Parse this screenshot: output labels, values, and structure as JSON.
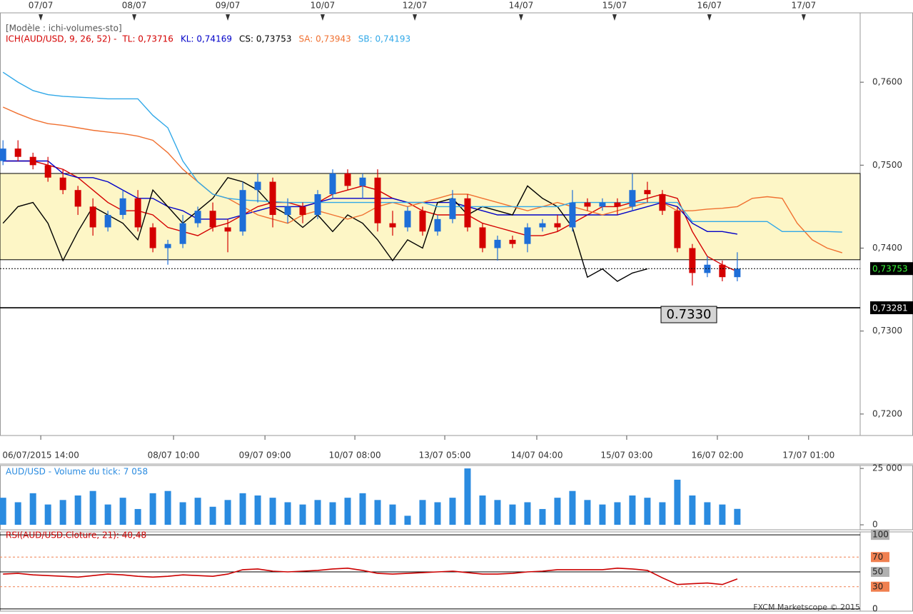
{
  "chart_data": [
    {
      "type": "candlestick",
      "title": "[Modèle : ichi-volumes-sto]",
      "indicator": "ICH(AUD/USD, 9, 26, 52) -",
      "xlim": [
        -0.2,
        57.2
      ],
      "ylim": [
        0.71741,
        0.76836
      ],
      "yticks": [
        {
          "value": 0.76,
          "label": "0,7600"
        },
        {
          "value": 0.75,
          "label": "0,7500"
        },
        {
          "value": 0.74,
          "label": "0,7400"
        },
        {
          "value": 0.73,
          "label": "0,7300"
        },
        {
          "value": 0.72,
          "label": "0,7200"
        }
      ],
      "xticks": [
        {
          "value": 2.52,
          "label": "06/07/2015 14:00"
        },
        {
          "value": 11.38,
          "label": "08/07 10:00"
        },
        {
          "value": 17.48,
          "label": "09/07 09:00"
        },
        {
          "value": 23.48,
          "label": "10/07 08:00"
        },
        {
          "value": 29.48,
          "label": "13/07 05:00"
        },
        {
          "value": 35.62,
          "label": "14/07 04:00"
        },
        {
          "value": 41.62,
          "label": "15/07 03:00"
        },
        {
          "value": 47.67,
          "label": "16/07 02:00"
        },
        {
          "value": 53.76,
          "label": "17/07 01:00"
        }
      ],
      "top_xticks": [
        {
          "value": 2.52,
          "label": "07/07"
        },
        {
          "value": 8.76,
          "label": "08/07"
        },
        {
          "value": 15.0,
          "label": "09/07"
        },
        {
          "value": 21.33,
          "label": "10/07"
        },
        {
          "value": 27.48,
          "label": "12/07"
        },
        {
          "value": 34.57,
          "label": "14/07"
        },
        {
          "value": 40.81,
          "label": "15/07"
        },
        {
          "value": 47.14,
          "label": "16/07"
        },
        {
          "value": 53.43,
          "label": "17/07"
        }
      ],
      "zone": [
        0.7386,
        0.749
      ],
      "current_price": {
        "value": 0.73753,
        "label": "0,73753"
      },
      "level": {
        "value": 0.73281,
        "label": "0,73281"
      },
      "level_annotation": "0.7330",
      "up_color": "#1e6ed8",
      "down_color": "#d40000",
      "open": [
        0.7505,
        0.752,
        0.751,
        0.75,
        0.7485,
        0.747,
        0.745,
        0.7425,
        0.744,
        0.746,
        0.7425,
        0.74,
        0.7405,
        0.743,
        0.7445,
        0.7425,
        0.742,
        0.747,
        0.748,
        0.744,
        0.745,
        0.744,
        0.7465,
        0.749,
        0.7475,
        0.7485,
        0.743,
        0.7425,
        0.7445,
        0.742,
        0.7435,
        0.746,
        0.7425,
        0.74,
        0.741,
        0.7405,
        0.7425,
        0.743,
        0.7425,
        0.7455,
        0.745,
        0.7455,
        0.745,
        0.747,
        0.7465,
        0.7445,
        0.74,
        0.737,
        0.738,
        0.7365
      ],
      "high": [
        0.753,
        0.753,
        0.7515,
        0.751,
        0.7495,
        0.7475,
        0.746,
        0.7445,
        0.747,
        0.747,
        0.743,
        0.741,
        0.744,
        0.745,
        0.7455,
        0.7435,
        0.748,
        0.749,
        0.7485,
        0.746,
        0.7455,
        0.747,
        0.7495,
        0.7495,
        0.749,
        0.7495,
        0.7445,
        0.745,
        0.745,
        0.744,
        0.747,
        0.7465,
        0.743,
        0.7415,
        0.7415,
        0.743,
        0.7435,
        0.744,
        0.747,
        0.746,
        0.746,
        0.746,
        0.749,
        0.748,
        0.747,
        0.745,
        0.7405,
        0.739,
        0.7385,
        0.7395
      ],
      "low": [
        0.75,
        0.7505,
        0.7495,
        0.748,
        0.7465,
        0.744,
        0.7415,
        0.742,
        0.7435,
        0.742,
        0.7395,
        0.738,
        0.74,
        0.7425,
        0.742,
        0.7395,
        0.7415,
        0.7455,
        0.7425,
        0.743,
        0.743,
        0.7435,
        0.746,
        0.747,
        0.746,
        0.742,
        0.7415,
        0.742,
        0.7415,
        0.7415,
        0.743,
        0.742,
        0.7395,
        0.7385,
        0.74,
        0.7395,
        0.742,
        0.742,
        0.742,
        0.7445,
        0.7445,
        0.744,
        0.7445,
        0.7455,
        0.744,
        0.7395,
        0.7355,
        0.7365,
        0.736,
        0.736
      ],
      "close": [
        0.752,
        0.751,
        0.75,
        0.7485,
        0.747,
        0.745,
        0.7425,
        0.744,
        0.746,
        0.7425,
        0.74,
        0.7405,
        0.743,
        0.7445,
        0.7425,
        0.742,
        0.747,
        0.748,
        0.744,
        0.745,
        0.744,
        0.7465,
        0.749,
        0.7475,
        0.7485,
        0.743,
        0.7425,
        0.7445,
        0.742,
        0.7435,
        0.746,
        0.7425,
        0.74,
        0.741,
        0.7405,
        0.7425,
        0.743,
        0.7425,
        0.7455,
        0.745,
        0.7455,
        0.745,
        0.747,
        0.7465,
        0.7445,
        0.74,
        0.737,
        0.738,
        0.7365,
        0.73753
      ],
      "series": [
        {
          "name": "TL: 0,73716",
          "color": "#d40000",
          "values": [
            0.7505,
            0.7505,
            0.7505,
            0.75,
            0.7495,
            0.7485,
            0.747,
            0.7455,
            0.7445,
            0.7445,
            0.744,
            0.7425,
            0.742,
            0.7415,
            0.7425,
            0.743,
            0.744,
            0.745,
            0.7455,
            0.7455,
            0.745,
            0.7455,
            0.7465,
            0.747,
            0.7475,
            0.747,
            0.746,
            0.7455,
            0.7445,
            0.744,
            0.744,
            0.744,
            0.743,
            0.7425,
            0.742,
            0.7415,
            0.7415,
            0.742,
            0.743,
            0.744,
            0.745,
            0.745,
            0.7455,
            0.746,
            0.7465,
            0.746,
            0.742,
            0.739,
            0.738,
            0.73716
          ]
        },
        {
          "name": "KL: 0,74169",
          "color": "#0000c8",
          "values": [
            0.7505,
            0.7505,
            0.7505,
            0.7505,
            0.749,
            0.7485,
            0.7485,
            0.748,
            0.747,
            0.746,
            0.746,
            0.745,
            0.7445,
            0.7435,
            0.7435,
            0.7435,
            0.744,
            0.7445,
            0.745,
            0.745,
            0.745,
            0.7455,
            0.746,
            0.746,
            0.746,
            0.746,
            0.746,
            0.7455,
            0.7455,
            0.7455,
            0.7455,
            0.745,
            0.7445,
            0.744,
            0.744,
            0.744,
            0.744,
            0.744,
            0.744,
            0.744,
            0.744,
            0.744,
            0.7445,
            0.745,
            0.7455,
            0.745,
            0.743,
            0.742,
            0.742,
            0.74169
          ]
        },
        {
          "name": "CS: 0,73753",
          "color": "#000000",
          "values": [
            0.743,
            0.745,
            0.7455,
            0.743,
            0.7385,
            0.742,
            0.745,
            0.744,
            0.743,
            0.741,
            0.747,
            0.745,
            0.743,
            0.7445,
            0.746,
            0.7485,
            0.748,
            0.747,
            0.745,
            0.744,
            0.7425,
            0.744,
            0.742,
            0.744,
            0.743,
            0.741,
            0.7385,
            0.741,
            0.74,
            0.7455,
            0.746,
            0.744,
            0.745,
            0.7445,
            0.744,
            0.7475,
            0.746,
            0.745,
            0.7425,
            0.7365,
            0.7375,
            0.736,
            0.737,
            0.7375
          ]
        },
        {
          "name": "SA: 0,73943",
          "color": "#f07030",
          "values": [
            0.757,
            0.7562,
            0.7555,
            0.755,
            0.7548,
            0.7545,
            0.7542,
            0.754,
            0.7538,
            0.7535,
            0.753,
            0.7515,
            0.7495,
            0.748,
            0.7465,
            0.746,
            0.745,
            0.744,
            0.7435,
            0.743,
            0.744,
            0.7445,
            0.744,
            0.7435,
            0.744,
            0.745,
            0.7455,
            0.745,
            0.7455,
            0.746,
            0.7465,
            0.7465,
            0.746,
            0.7455,
            0.745,
            0.7445,
            0.745,
            0.7455,
            0.745,
            0.7445,
            0.744,
            0.7445,
            0.745,
            0.7455,
            0.7455,
            0.7445,
            0.7445,
            0.7447,
            0.7448,
            0.745,
            0.746,
            0.7462,
            0.746,
            0.743,
            0.741,
            0.74,
            0.73943
          ]
        },
        {
          "name": "SB: 0,74193",
          "color": "#30a8e8",
          "values": [
            0.7612,
            0.76,
            0.759,
            0.7585,
            0.7583,
            0.7582,
            0.7581,
            0.758,
            0.758,
            0.758,
            0.756,
            0.7545,
            0.7505,
            0.748,
            0.7465,
            0.746,
            0.7458,
            0.7457,
            0.7456,
            0.7455,
            0.7455,
            0.7455,
            0.7455,
            0.7455,
            0.7455,
            0.7455,
            0.7455,
            0.7455,
            0.7455,
            0.745,
            0.745,
            0.745,
            0.745,
            0.745,
            0.745,
            0.745,
            0.745,
            0.745,
            0.7455,
            0.7455,
            0.7455,
            0.7455,
            0.7455,
            0.7455,
            0.7455,
            0.7455,
            0.7432,
            0.7432,
            0.7432,
            0.7432,
            0.7432,
            0.7432,
            0.742,
            0.742,
            0.742,
            0.742,
            0.74193
          ]
        }
      ]
    },
    {
      "type": "bar",
      "title": "AUD/USD - Volume du tick: 7 058",
      "color": "#2a8be0",
      "xlim": [
        -0.2,
        57.2
      ],
      "ylim": [
        -2200,
        26300
      ],
      "yticks": [
        {
          "value": 25000,
          "label": "25 000"
        },
        0
      ],
      "values": [
        12000,
        10000,
        14000,
        9000,
        11000,
        13000,
        15000,
        9000,
        12000,
        7000,
        14000,
        15000,
        10000,
        12000,
        8000,
        11000,
        14000,
        13000,
        12000,
        10000,
        9000,
        11000,
        10000,
        12000,
        14000,
        11000,
        9000,
        4000,
        11000,
        10000,
        12000,
        25000,
        13000,
        11000,
        9000,
        10000,
        7000,
        12000,
        15000,
        11000,
        9000,
        10000,
        13000,
        12000,
        10000,
        20000,
        13000,
        10000,
        9000,
        7058
      ]
    },
    {
      "type": "line",
      "title": "RSI(AUD/USD.Cloture, 21): 40,48",
      "color": "#cc0000",
      "xlim": [
        -0.2,
        57.2
      ],
      "ylim": [
        -3,
        104
      ],
      "yticks": [
        100,
        70,
        50,
        30,
        0
      ],
      "box_colors": [
        "#b0b0b0",
        "#f08050",
        "#b0b0b0",
        "#f08050",
        null
      ],
      "values": [
        47,
        48,
        46,
        45,
        44,
        43,
        45,
        47,
        46,
        44,
        43,
        44,
        46,
        45,
        44,
        47,
        53,
        54,
        51,
        50,
        51,
        52,
        54,
        55,
        52,
        48,
        47,
        48,
        49,
        50,
        51,
        49,
        47,
        47,
        48,
        50,
        51,
        53,
        53,
        53,
        53,
        55,
        54,
        52,
        42,
        33,
        34,
        35,
        33,
        40.48
      ]
    }
  ],
  "footer": "FXCM Marketscope © 2015"
}
